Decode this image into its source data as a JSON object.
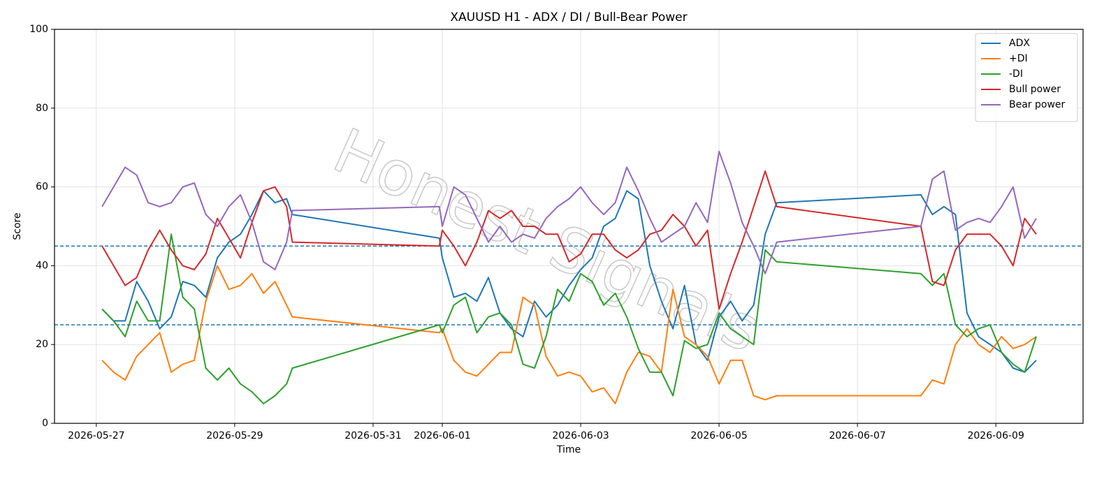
{
  "chart_data": {
    "type": "line",
    "title": "XAUUSD H1 - ADX / DI / Bull-Bear Power",
    "xlabel": "Time",
    "ylabel": "Score",
    "annotation": "Honest Signals",
    "x": [
      "2026-05-27 02:00",
      "2026-05-27 06:00",
      "2026-05-27 10:00",
      "2026-05-27 14:00",
      "2026-05-27 18:00",
      "2026-05-27 22:00",
      "2026-05-28 02:00",
      "2026-05-28 06:00",
      "2026-05-28 10:00",
      "2026-05-28 14:00",
      "2026-05-28 18:00",
      "2026-05-28 22:00",
      "2026-05-29 02:00",
      "2026-05-29 06:00",
      "2026-05-29 10:00",
      "2026-05-29 14:00",
      "2026-05-29 18:00",
      "2026-05-29 20:00",
      "2026-05-31 23:00",
      "2026-06-01 00:00",
      "2026-06-01 04:00",
      "2026-06-01 08:00",
      "2026-06-01 12:00",
      "2026-06-01 16:00",
      "2026-06-01 20:00",
      "2026-06-02 00:00",
      "2026-06-02 04:00",
      "2026-06-02 08:00",
      "2026-06-02 12:00",
      "2026-06-02 16:00",
      "2026-06-02 20:00",
      "2026-06-03 00:00",
      "2026-06-03 04:00",
      "2026-06-03 08:00",
      "2026-06-03 12:00",
      "2026-06-03 16:00",
      "2026-06-03 20:00",
      "2026-06-04 00:00",
      "2026-06-04 04:00",
      "2026-06-04 08:00",
      "2026-06-04 12:00",
      "2026-06-04 16:00",
      "2026-06-04 20:00",
      "2026-06-05 00:00",
      "2026-06-05 04:00",
      "2026-06-05 08:00",
      "2026-06-05 12:00",
      "2026-06-05 16:00",
      "2026-06-05 20:00",
      "2026-06-07 22:00",
      "2026-06-08 02:00",
      "2026-06-08 06:00",
      "2026-06-08 10:00",
      "2026-06-08 14:00",
      "2026-06-08 18:00",
      "2026-06-08 22:00",
      "2026-06-09 02:00",
      "2026-06-09 06:00",
      "2026-06-09 10:00",
      "2026-06-09 14:00"
    ],
    "series": [
      {
        "name": "ADX",
        "color": "#1f77b4",
        "values": [
          29,
          26,
          26,
          36,
          31,
          24,
          27,
          36,
          35,
          32,
          42,
          46,
          48,
          53,
          59,
          56,
          57,
          53,
          47,
          42,
          32,
          33,
          31,
          37,
          28,
          24,
          22,
          31,
          27,
          30,
          35,
          39,
          42,
          50,
          52,
          59,
          57,
          40,
          31,
          24,
          35,
          20,
          16,
          27,
          31,
          26,
          30,
          48,
          56,
          58,
          53,
          55,
          53,
          28,
          22,
          20,
          18,
          14,
          13,
          16
        ]
      },
      {
        "name": "+DI",
        "color": "#ff7f0e",
        "values": [
          16,
          13,
          11,
          17,
          20,
          23,
          13,
          15,
          16,
          31,
          40,
          34,
          35,
          38,
          33,
          36,
          30,
          27,
          23,
          24,
          16,
          13,
          12,
          15,
          18,
          18,
          32,
          30,
          17,
          12,
          13,
          12,
          8,
          9,
          5,
          13,
          18,
          17,
          13,
          34,
          22,
          20,
          17,
          10,
          16,
          16,
          7,
          6,
          7,
          7,
          11,
          10,
          20,
          24,
          20,
          18,
          22,
          19,
          20,
          22
        ]
      },
      {
        "name": "-DI",
        "color": "#2ca02c",
        "values": [
          29,
          26,
          22,
          31,
          26,
          26,
          48,
          32,
          29,
          14,
          11,
          14,
          10,
          8,
          5,
          7,
          10,
          14,
          25,
          23,
          30,
          32,
          23,
          27,
          28,
          25,
          15,
          14,
          22,
          34,
          31,
          38,
          36,
          30,
          33,
          27,
          19,
          13,
          13,
          7,
          21,
          19,
          20,
          28,
          24,
          22,
          20,
          44,
          41,
          38,
          35,
          38,
          25,
          22,
          24,
          25,
          18,
          15,
          13,
          22
        ]
      },
      {
        "name": "Bull power",
        "color": "#d62728",
        "values": [
          45,
          40,
          35,
          37,
          44,
          49,
          44,
          40,
          39,
          43,
          52,
          47,
          42,
          51,
          59,
          60,
          55,
          46,
          45,
          49,
          45,
          40,
          46,
          54,
          52,
          54,
          50,
          50,
          48,
          48,
          41,
          43,
          48,
          48,
          44,
          42,
          44,
          48,
          49,
          53,
          50,
          45,
          49,
          29,
          38,
          46,
          55,
          64,
          55,
          50,
          36,
          35,
          44,
          48,
          48,
          48,
          45,
          40,
          52,
          48
        ]
      },
      {
        "name": "Bear power",
        "color": "#9467bd",
        "values": [
          55,
          60,
          65,
          63,
          56,
          55,
          56,
          60,
          61,
          53,
          50,
          55,
          58,
          51,
          41,
          39,
          46,
          54,
          55,
          50,
          60,
          58,
          52,
          46,
          50,
          46,
          48,
          47,
          52,
          55,
          57,
          60,
          56,
          53,
          56,
          65,
          59,
          52,
          46,
          48,
          50,
          56,
          51,
          69,
          61,
          51,
          45,
          38,
          46,
          50,
          62,
          64,
          49,
          51,
          52,
          51,
          55,
          60,
          47,
          52
        ]
      }
    ],
    "hlines": [
      {
        "value": 45,
        "color": "#1f77b4"
      },
      {
        "value": 25,
        "color": "#1f77b4"
      }
    ],
    "xlim": [
      "2026-05-26 09:30",
      "2026-06-10 06:15"
    ],
    "xticks": [
      "2026-05-27",
      "2026-05-29",
      "2026-05-31",
      "2026-06-01",
      "2026-06-03",
      "2026-06-05",
      "2026-06-07",
      "2026-06-09"
    ],
    "ylim": [
      0,
      100
    ],
    "yticks": [
      0,
      20,
      40,
      60,
      80,
      100
    ],
    "grid": true,
    "legend": "upper right"
  }
}
